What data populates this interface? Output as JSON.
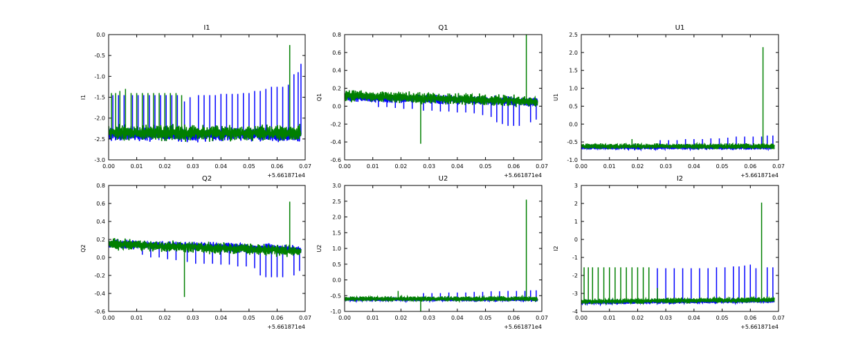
{
  "figure": {
    "background": "#ffffff"
  },
  "series_colors": {
    "blue": "#0000ff",
    "green": "#007f00"
  },
  "chart_data": [
    {
      "type": "line",
      "title": "I1",
      "xlabel": "",
      "ylabel": "I1",
      "xlim": [
        0.0,
        0.07
      ],
      "ylim": [
        -3.0,
        0.0
      ],
      "xticks": [
        "0.00",
        "0.01",
        "0.02",
        "0.03",
        "0.04",
        "0.05",
        "0.06",
        "0.07"
      ],
      "yticks": [
        "0.0",
        "-0.5",
        "-1.0",
        "-1.5",
        "-2.0",
        "-2.5",
        "-3.0"
      ],
      "x_offset_label": "+5.661871e4",
      "grid": false,
      "legend": "none",
      "series": [
        {
          "color": "#0000ff",
          "baseline": -2.4,
          "noise": 0.13,
          "trend": 0.0,
          "spikes": [
            {
              "x": 0.0015,
              "y": -1.45
            },
            {
              "x": 0.0035,
              "y": -1.45
            },
            {
              "x": 0.0055,
              "y": -1.45
            },
            {
              "x": 0.0085,
              "y": -1.45
            },
            {
              "x": 0.0105,
              "y": -1.45
            },
            {
              "x": 0.0125,
              "y": -1.45
            },
            {
              "x": 0.0145,
              "y": -1.45
            },
            {
              "x": 0.0165,
              "y": -1.45
            },
            {
              "x": 0.0185,
              "y": -1.45
            },
            {
              "x": 0.0205,
              "y": -1.45
            },
            {
              "x": 0.0225,
              "y": -1.45
            },
            {
              "x": 0.0245,
              "y": -1.45
            },
            {
              "x": 0.027,
              "y": -1.6
            },
            {
              "x": 0.029,
              "y": -1.5
            },
            {
              "x": 0.032,
              "y": -1.45
            },
            {
              "x": 0.034,
              "y": -1.45
            },
            {
              "x": 0.036,
              "y": -1.45
            },
            {
              "x": 0.038,
              "y": -1.45
            },
            {
              "x": 0.04,
              "y": -1.42
            },
            {
              "x": 0.042,
              "y": -1.42
            },
            {
              "x": 0.044,
              "y": -1.42
            },
            {
              "x": 0.046,
              "y": -1.42
            },
            {
              "x": 0.048,
              "y": -1.4
            },
            {
              "x": 0.05,
              "y": -1.4
            },
            {
              "x": 0.052,
              "y": -1.35
            },
            {
              "x": 0.054,
              "y": -1.35
            },
            {
              "x": 0.056,
              "y": -1.3
            },
            {
              "x": 0.058,
              "y": -1.25
            },
            {
              "x": 0.06,
              "y": -1.25
            },
            {
              "x": 0.062,
              "y": -1.25
            },
            {
              "x": 0.064,
              "y": -1.2
            },
            {
              "x": 0.066,
              "y": -0.95
            },
            {
              "x": 0.0675,
              "y": -0.9
            },
            {
              "x": 0.0685,
              "y": -0.7
            }
          ]
        },
        {
          "color": "#007f00",
          "baseline": -2.35,
          "noise": 0.15,
          "trend": 0.0,
          "spikes": [
            {
              "x": 0.001,
              "y": -1.4
            },
            {
              "x": 0.0025,
              "y": -1.4
            },
            {
              "x": 0.004,
              "y": -1.35
            },
            {
              "x": 0.006,
              "y": -1.3
            },
            {
              "x": 0.008,
              "y": -1.4
            },
            {
              "x": 0.01,
              "y": -1.4
            },
            {
              "x": 0.012,
              "y": -1.4
            },
            {
              "x": 0.014,
              "y": -1.4
            },
            {
              "x": 0.016,
              "y": -1.4
            },
            {
              "x": 0.018,
              "y": -1.4
            },
            {
              "x": 0.02,
              "y": -1.4
            },
            {
              "x": 0.022,
              "y": -1.4
            },
            {
              "x": 0.024,
              "y": -1.4
            },
            {
              "x": 0.026,
              "y": -1.45
            },
            {
              "x": 0.0645,
              "y": -0.25
            }
          ]
        }
      ]
    },
    {
      "type": "line",
      "title": "Q1",
      "xlabel": "",
      "ylabel": "Q1",
      "xlim": [
        0.0,
        0.07
      ],
      "ylim": [
        -0.6,
        0.8
      ],
      "xticks": [
        "0.00",
        "0.01",
        "0.02",
        "0.03",
        "0.04",
        "0.05",
        "0.06",
        "0.07"
      ],
      "yticks": [
        "0.8",
        "0.6",
        "0.4",
        "0.2",
        "0.0",
        "-0.2",
        "-0.4",
        "-0.6"
      ],
      "x_offset_label": "+5.661871e4",
      "grid": false,
      "legend": "none",
      "series": [
        {
          "color": "#0000ff",
          "baseline": 0.1,
          "noise": 0.04,
          "trend": -0.05,
          "spikes": [
            {
              "x": 0.012,
              "y": -0.01
            },
            {
              "x": 0.015,
              "y": -0.01
            },
            {
              "x": 0.018,
              "y": -0.02
            },
            {
              "x": 0.021,
              "y": -0.03
            },
            {
              "x": 0.024,
              "y": -0.03
            },
            {
              "x": 0.028,
              "y": -0.05
            },
            {
              "x": 0.031,
              "y": -0.05
            },
            {
              "x": 0.034,
              "y": -0.06
            },
            {
              "x": 0.037,
              "y": -0.06
            },
            {
              "x": 0.04,
              "y": -0.07
            },
            {
              "x": 0.043,
              "y": -0.07
            },
            {
              "x": 0.046,
              "y": -0.08
            },
            {
              "x": 0.049,
              "y": -0.1
            },
            {
              "x": 0.052,
              "y": -0.12
            },
            {
              "x": 0.054,
              "y": -0.18
            },
            {
              "x": 0.056,
              "y": -0.2
            },
            {
              "x": 0.058,
              "y": -0.22
            },
            {
              "x": 0.06,
              "y": -0.22
            },
            {
              "x": 0.062,
              "y": -0.22
            },
            {
              "x": 0.066,
              "y": -0.18
            },
            {
              "x": 0.068,
              "y": -0.15
            }
          ]
        },
        {
          "color": "#007f00",
          "baseline": 0.12,
          "noise": 0.05,
          "trend": -0.07,
          "spikes": [
            {
              "x": 0.027,
              "y": -0.42
            },
            {
              "x": 0.0645,
              "y": 0.8
            }
          ]
        }
      ]
    },
    {
      "type": "line",
      "title": "U1",
      "xlabel": "",
      "ylabel": "U1",
      "xlim": [
        0.0,
        0.07
      ],
      "ylim": [
        -1.0,
        2.5
      ],
      "xticks": [
        "0.00",
        "0.01",
        "0.02",
        "0.03",
        "0.04",
        "0.05",
        "0.06",
        "0.07"
      ],
      "yticks": [
        "2.5",
        "2.0",
        "1.5",
        "1.0",
        "0.5",
        "0.0",
        "-0.5",
        "-1.0"
      ],
      "x_offset_label": "+5.661871e4",
      "grid": false,
      "legend": "none",
      "series": [
        {
          "color": "#0000ff",
          "baseline": -0.65,
          "noise": 0.05,
          "trend": 0.0,
          "spikes": [
            {
              "x": 0.028,
              "y": -0.45
            },
            {
              "x": 0.031,
              "y": -0.45
            },
            {
              "x": 0.034,
              "y": -0.45
            },
            {
              "x": 0.037,
              "y": -0.42
            },
            {
              "x": 0.04,
              "y": -0.42
            },
            {
              "x": 0.043,
              "y": -0.42
            },
            {
              "x": 0.046,
              "y": -0.4
            },
            {
              "x": 0.049,
              "y": -0.4
            },
            {
              "x": 0.052,
              "y": -0.38
            },
            {
              "x": 0.055,
              "y": -0.35
            },
            {
              "x": 0.058,
              "y": -0.35
            },
            {
              "x": 0.061,
              "y": -0.35
            },
            {
              "x": 0.064,
              "y": -0.35
            },
            {
              "x": 0.066,
              "y": -0.32
            },
            {
              "x": 0.068,
              "y": -0.32
            }
          ]
        },
        {
          "color": "#007f00",
          "baseline": -0.62,
          "noise": 0.06,
          "trend": 0.0,
          "spikes": [
            {
              "x": 0.018,
              "y": -0.42
            },
            {
              "x": 0.027,
              "y": -0.55
            },
            {
              "x": 0.0645,
              "y": 2.15
            }
          ]
        }
      ]
    },
    {
      "type": "line",
      "title": "Q2",
      "xlabel": "",
      "ylabel": "Q2",
      "xlim": [
        0.0,
        0.07
      ],
      "ylim": [
        -0.6,
        0.8
      ],
      "xticks": [
        "0.00",
        "0.01",
        "0.02",
        "0.03",
        "0.04",
        "0.05",
        "0.06",
        "0.07"
      ],
      "yticks": [
        "0.8",
        "0.6",
        "0.4",
        "0.2",
        "0.0",
        "-0.2",
        "-0.4",
        "-0.6"
      ],
      "x_offset_label": "+5.661871e4",
      "grid": false,
      "legend": "none",
      "series": [
        {
          "color": "#0000ff",
          "baseline": 0.15,
          "noise": 0.04,
          "trend": -0.06,
          "spikes": [
            {
              "x": 0.012,
              "y": 0.03
            },
            {
              "x": 0.015,
              "y": 0.0
            },
            {
              "x": 0.018,
              "y": 0.0
            },
            {
              "x": 0.021,
              "y": -0.02
            },
            {
              "x": 0.024,
              "y": -0.03
            },
            {
              "x": 0.028,
              "y": -0.05
            },
            {
              "x": 0.031,
              "y": -0.07
            },
            {
              "x": 0.034,
              "y": -0.07
            },
            {
              "x": 0.037,
              "y": -0.07
            },
            {
              "x": 0.04,
              "y": -0.08
            },
            {
              "x": 0.043,
              "y": -0.08
            },
            {
              "x": 0.046,
              "y": -0.1
            },
            {
              "x": 0.049,
              "y": -0.1
            },
            {
              "x": 0.052,
              "y": -0.12
            },
            {
              "x": 0.054,
              "y": -0.2
            },
            {
              "x": 0.056,
              "y": -0.22
            },
            {
              "x": 0.058,
              "y": -0.22
            },
            {
              "x": 0.06,
              "y": -0.22
            },
            {
              "x": 0.062,
              "y": -0.22
            },
            {
              "x": 0.066,
              "y": -0.2
            },
            {
              "x": 0.068,
              "y": -0.15
            }
          ]
        },
        {
          "color": "#007f00",
          "baseline": 0.15,
          "noise": 0.05,
          "trend": -0.08,
          "spikes": [
            {
              "x": 0.027,
              "y": -0.44
            },
            {
              "x": 0.0645,
              "y": 0.62
            }
          ]
        }
      ]
    },
    {
      "type": "line",
      "title": "U2",
      "xlabel": "",
      "ylabel": "U2",
      "xlim": [
        0.0,
        0.07
      ],
      "ylim": [
        -1.0,
        3.0
      ],
      "xticks": [
        "0.00",
        "0.01",
        "0.02",
        "0.03",
        "0.04",
        "0.05",
        "0.06",
        "0.07"
      ],
      "yticks": [
        "3.0",
        "2.5",
        "2.0",
        "1.5",
        "1.0",
        "0.5",
        "0.0",
        "-0.5",
        "-1.0"
      ],
      "x_offset_label": "+5.661871e4",
      "grid": false,
      "legend": "none",
      "series": [
        {
          "color": "#0000ff",
          "baseline": -0.62,
          "noise": 0.05,
          "trend": 0.0,
          "spikes": [
            {
              "x": 0.028,
              "y": -0.42
            },
            {
              "x": 0.031,
              "y": -0.42
            },
            {
              "x": 0.034,
              "y": -0.42
            },
            {
              "x": 0.037,
              "y": -0.4
            },
            {
              "x": 0.04,
              "y": -0.4
            },
            {
              "x": 0.043,
              "y": -0.4
            },
            {
              "x": 0.046,
              "y": -0.38
            },
            {
              "x": 0.049,
              "y": -0.38
            },
            {
              "x": 0.052,
              "y": -0.36
            },
            {
              "x": 0.055,
              "y": -0.36
            },
            {
              "x": 0.058,
              "y": -0.35
            },
            {
              "x": 0.061,
              "y": -0.35
            },
            {
              "x": 0.064,
              "y": -0.35
            },
            {
              "x": 0.066,
              "y": -0.33
            },
            {
              "x": 0.068,
              "y": -0.33
            }
          ]
        },
        {
          "color": "#007f00",
          "baseline": -0.6,
          "noise": 0.06,
          "trend": 0.0,
          "spikes": [
            {
              "x": 0.019,
              "y": -0.35
            },
            {
              "x": 0.027,
              "y": -1.0
            },
            {
              "x": 0.0645,
              "y": 2.55
            }
          ]
        }
      ]
    },
    {
      "type": "line",
      "title": "I2",
      "xlabel": "",
      "ylabel": "I2",
      "xlim": [
        0.0,
        0.07
      ],
      "ylim": [
        -4.0,
        3.0
      ],
      "xticks": [
        "0.00",
        "0.01",
        "0.02",
        "0.03",
        "0.04",
        "0.05",
        "0.06",
        "0.07"
      ],
      "yticks": [
        "3",
        "2",
        "1",
        "0",
        "-1",
        "-2",
        "-3",
        "-4"
      ],
      "x_offset_label": "+5.661871e4",
      "grid": false,
      "legend": "none",
      "series": [
        {
          "color": "#0000ff",
          "baseline": -3.5,
          "noise": 0.1,
          "trend": 0.1,
          "spikes": [
            {
              "x": 0.027,
              "y": -1.6
            },
            {
              "x": 0.03,
              "y": -1.6
            },
            {
              "x": 0.033,
              "y": -1.6
            },
            {
              "x": 0.036,
              "y": -1.6
            },
            {
              "x": 0.039,
              "y": -1.6
            },
            {
              "x": 0.042,
              "y": -1.6
            },
            {
              "x": 0.045,
              "y": -1.6
            },
            {
              "x": 0.048,
              "y": -1.55
            },
            {
              "x": 0.051,
              "y": -1.55
            },
            {
              "x": 0.054,
              "y": -1.5
            },
            {
              "x": 0.056,
              "y": -1.5
            },
            {
              "x": 0.058,
              "y": -1.45
            },
            {
              "x": 0.06,
              "y": -1.4
            },
            {
              "x": 0.062,
              "y": -1.6
            },
            {
              "x": 0.066,
              "y": -1.55
            },
            {
              "x": 0.068,
              "y": -1.55
            }
          ]
        },
        {
          "color": "#007f00",
          "baseline": -3.45,
          "noise": 0.12,
          "trend": 0.1,
          "spikes": [
            {
              "x": 0.001,
              "y": -1.55
            },
            {
              "x": 0.0025,
              "y": -1.55
            },
            {
              "x": 0.004,
              "y": -1.55
            },
            {
              "x": 0.006,
              "y": -1.55
            },
            {
              "x": 0.008,
              "y": -1.55
            },
            {
              "x": 0.01,
              "y": -1.55
            },
            {
              "x": 0.012,
              "y": -1.55
            },
            {
              "x": 0.014,
              "y": -1.55
            },
            {
              "x": 0.016,
              "y": -1.55
            },
            {
              "x": 0.018,
              "y": -1.55
            },
            {
              "x": 0.02,
              "y": -1.55
            },
            {
              "x": 0.022,
              "y": -1.55
            },
            {
              "x": 0.024,
              "y": -1.55
            },
            {
              "x": 0.027,
              "y": -2.7
            },
            {
              "x": 0.064,
              "y": 2.05
            }
          ]
        }
      ]
    }
  ]
}
